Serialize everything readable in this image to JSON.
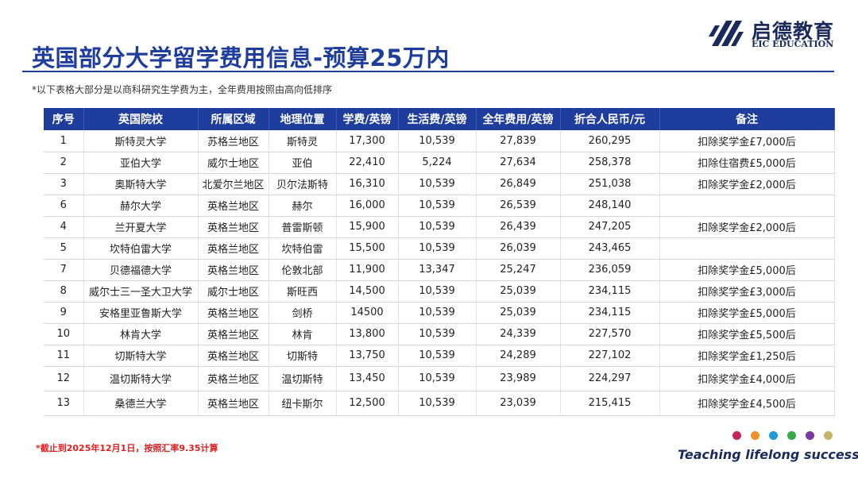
{
  "title": "英国部分大学留学费用信息-预算25万内",
  "note": "*以下表格大部分是以商科研究生学费为主，全年费用按照由高向低排序",
  "logo": {
    "cn": "启德教育",
    "en": "EIC EDUCATION"
  },
  "table": {
    "headers": [
      "序号",
      "英国院校",
      "所属区域",
      "地理位置",
      "学费/英镑",
      "生活费/英镑",
      "全年费用/英镑",
      "折合人民币/元",
      "备注"
    ],
    "rows": [
      [
        "1",
        "斯特灵大学",
        "苏格兰地区",
        "斯特灵",
        "17,300",
        "10,539",
        "27,839",
        "260,295",
        "扣除奖学金£7,000后"
      ],
      [
        "2",
        "亚伯大学",
        "威尔士地区",
        "亚伯",
        "22,410",
        "5,224",
        "27,634",
        "258,378",
        "扣除住宿费£5,000后"
      ],
      [
        "3",
        "奥斯特大学",
        "北爱尔兰地区",
        "贝尔法斯特",
        "16,310",
        "10,539",
        "26,849",
        "251,038",
        "扣除奖学金£2,000后"
      ],
      [
        "6",
        "赫尔大学",
        "英格兰地区",
        "赫尔",
        "16,000",
        "10,539",
        "26,539",
        "248,140",
        ""
      ],
      [
        "4",
        "兰开夏大学",
        "英格兰地区",
        "普雷斯顿",
        "15,900",
        "10,539",
        "26,439",
        "247,205",
        "扣除奖学金£2,000后"
      ],
      [
        "5",
        "坎特伯雷大学",
        "英格兰地区",
        "坎特伯雷",
        "15,500",
        "10,539",
        "26,039",
        "243,465",
        ""
      ],
      [
        "7",
        "贝德福德大学",
        "英格兰地区",
        "伦敦北部",
        "11,900",
        "13,347",
        "25,247",
        "236,059",
        "扣除奖学金£5,000后"
      ],
      [
        "8",
        "威尔士三一圣大卫大学",
        "威尔士地区",
        "斯旺西",
        "14,500",
        "10,539",
        "25,039",
        "234,115",
        "扣除奖学金£3,000后"
      ],
      [
        "9",
        "安格里亚鲁斯大学",
        "英格兰地区",
        "剑桥",
        "14500",
        "10,539",
        "25,039",
        "234,115",
        "扣除奖学金£5,000后"
      ],
      [
        "10",
        "林肯大学",
        "英格兰地区",
        "林肯",
        "13,800",
        "10,539",
        "24,339",
        "227,570",
        "扣除奖学金£5,500后"
      ],
      [
        "11",
        "切斯特大学",
        "英格兰地区",
        "切斯特",
        "13,750",
        "10,539",
        "24,289",
        "227,102",
        "扣除奖学金£1,250后"
      ],
      [
        "12",
        "温切斯特大学",
        "英格兰地区",
        "温切斯特",
        "13,450",
        "10,539",
        "23,989",
        "224,297",
        "扣除奖学金£4,000后"
      ],
      [
        "13",
        "桑德兰大学",
        "英格兰地区",
        "纽卡斯尔",
        "12,500",
        "10,539",
        "23,039",
        "215,415",
        "扣除奖学金£4,500后"
      ]
    ]
  },
  "footnote": "*截止到2025年12月1日，按照汇率9.35计算",
  "slogan": "Teaching lifelong success",
  "dot_colors": [
    "#c8245c",
    "#f0902a",
    "#1e9bd6",
    "#3aa84a",
    "#7a3aa0",
    "#c8b46a"
  ]
}
